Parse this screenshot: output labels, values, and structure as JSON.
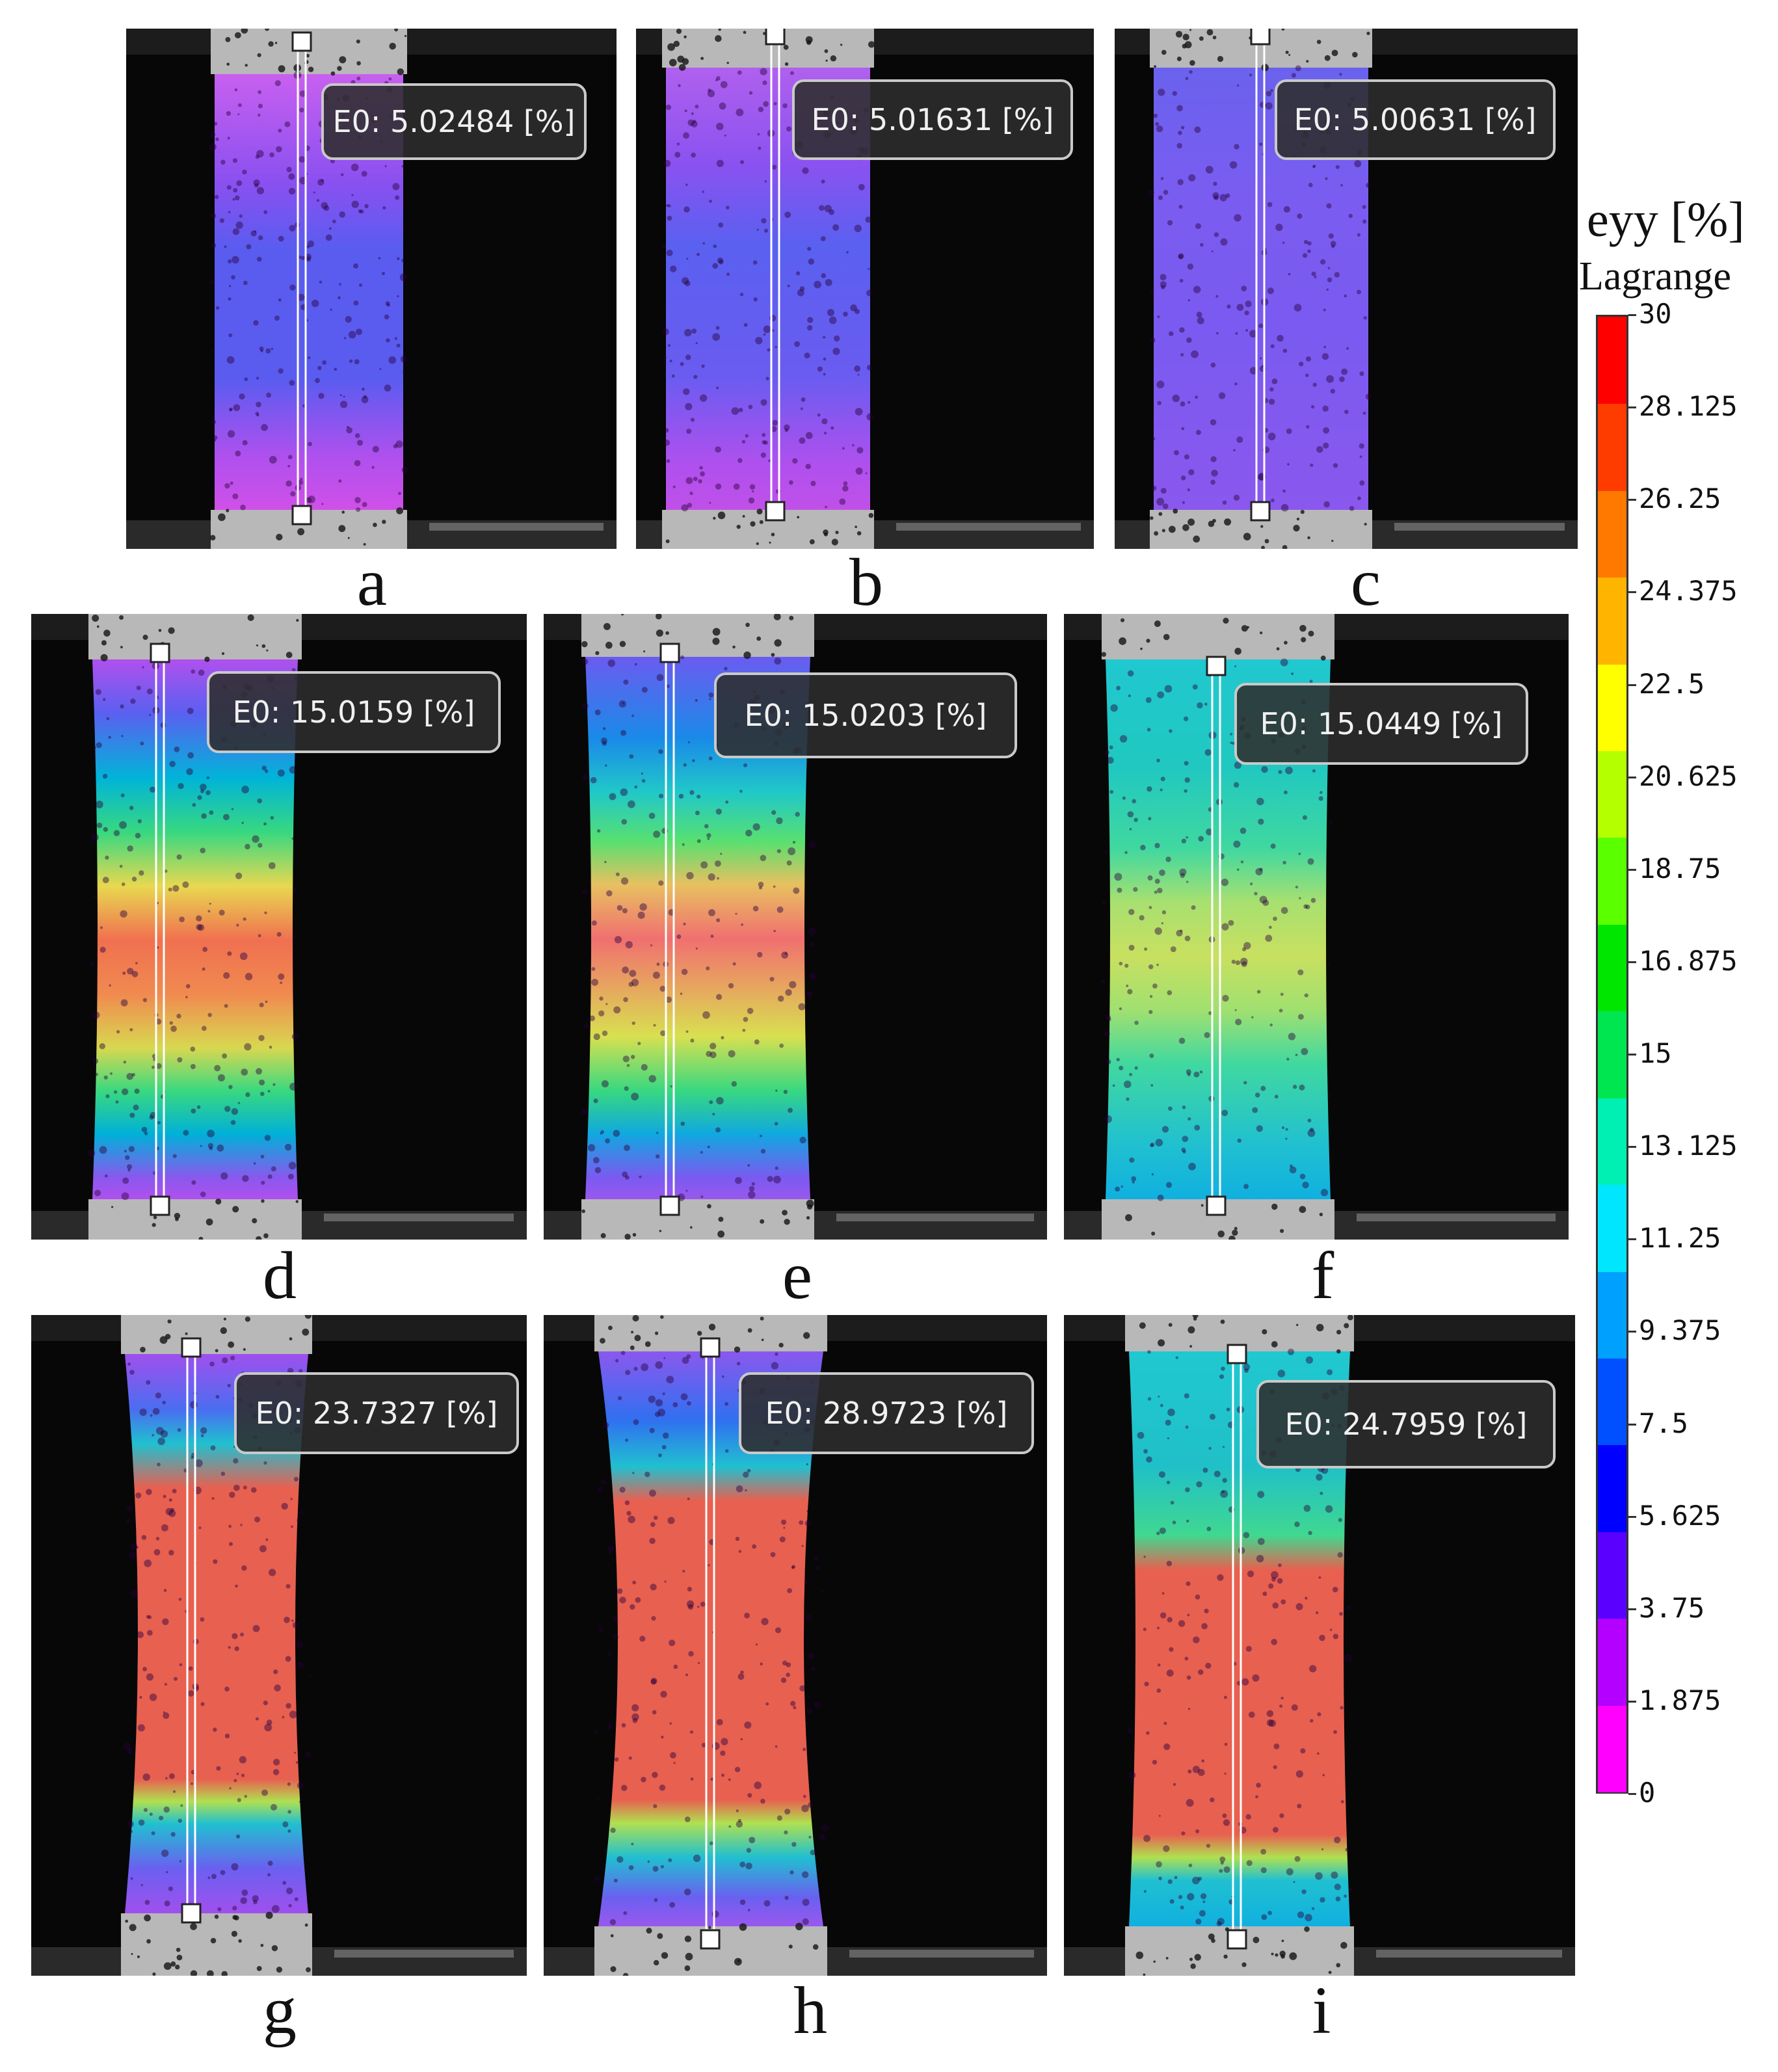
{
  "panels": [
    {
      "label": "a",
      "readout": "E0: 5.02484 [%]"
    },
    {
      "label": "b",
      "readout": "E0: 5.01631 [%]"
    },
    {
      "label": "c",
      "readout": "E0: 5.00631 [%]"
    },
    {
      "label": "d",
      "readout": "E0: 15.0159 [%]"
    },
    {
      "label": "e",
      "readout": "E0: 15.0203 [%]"
    },
    {
      "label": "f",
      "readout": "E0: 15.0449 [%]"
    },
    {
      "label": "g",
      "readout": "E0: 23.7327 [%]"
    },
    {
      "label": "h",
      "readout": "E0: 28.9723 [%]"
    },
    {
      "label": "i",
      "readout": "E0: 24.7959 [%]"
    }
  ],
  "colorbar": {
    "title": "eyy [%]",
    "subtitle": "Lagrange",
    "ticks": [
      "30",
      "28.125",
      "26.25",
      "24.375",
      "22.5",
      "20.625",
      "18.75",
      "16.875",
      "15",
      "13.125",
      "11.25",
      "9.375",
      "7.5",
      "5.625",
      "3.75",
      "1.875",
      "0"
    ],
    "colors": [
      "#ff00ff",
      "#b400ff",
      "#5a00ff",
      "#0000ff",
      "#0050ff",
      "#00a0ff",
      "#00e6ff",
      "#00f0b4",
      "#00e650",
      "#00e600",
      "#5aff00",
      "#b4ff00",
      "#ffff00",
      "#ffb400",
      "#ff7800",
      "#ff3c00",
      "#ff0000"
    ]
  }
}
